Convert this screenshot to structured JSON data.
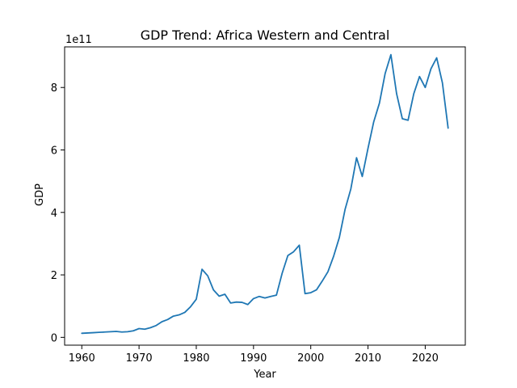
{
  "chart_data": {
    "type": "line",
    "title": "GDP Trend: Africa Western and Central",
    "xlabel": "Year",
    "ylabel": "GDP",
    "y_offset_label": "1e11",
    "xlim": [
      1957,
      2027
    ],
    "ylim": [
      -0.25,
      9.3
    ],
    "xticks": [
      1960,
      1970,
      1980,
      1990,
      2000,
      2010,
      2020
    ],
    "yticks": [
      0,
      2,
      4,
      6,
      8
    ],
    "grid": false,
    "line_color": "#1f77b4",
    "series": [
      {
        "x": [
          1960,
          1961,
          1962,
          1963,
          1964,
          1965,
          1966,
          1967,
          1968,
          1969,
          1970,
          1971,
          1972,
          1973,
          1974,
          1975,
          1976,
          1977,
          1978,
          1979,
          1980,
          1981,
          1982,
          1983,
          1984,
          1985,
          1986,
          1987,
          1988,
          1989,
          1990,
          1991,
          1992,
          1993,
          1994,
          1995,
          1996,
          1997,
          1998,
          1999,
          2000,
          2001,
          2002,
          2003,
          2004,
          2005,
          2006,
          2007,
          2008,
          2009,
          2010,
          2011,
          2012,
          2013,
          2014,
          2015,
          2016,
          2017,
          2018,
          2019,
          2020,
          2021,
          2022,
          2023,
          2024
        ],
        "values": [
          0.13,
          0.14,
          0.15,
          0.16,
          0.17,
          0.18,
          0.19,
          0.17,
          0.18,
          0.21,
          0.28,
          0.26,
          0.31,
          0.38,
          0.5,
          0.57,
          0.68,
          0.72,
          0.8,
          0.98,
          1.22,
          2.18,
          1.97,
          1.52,
          1.32,
          1.38,
          1.1,
          1.13,
          1.12,
          1.05,
          1.24,
          1.31,
          1.26,
          1.31,
          1.35,
          2.05,
          2.62,
          2.74,
          2.95,
          1.4,
          1.43,
          1.52,
          1.8,
          2.1,
          2.6,
          3.2,
          4.1,
          4.75,
          5.75,
          5.15,
          6.05,
          6.9,
          7.5,
          8.45,
          9.05,
          7.8,
          7.0,
          6.95,
          7.8,
          8.35,
          8.0,
          8.6,
          8.95,
          8.15,
          6.7
        ]
      }
    ]
  }
}
